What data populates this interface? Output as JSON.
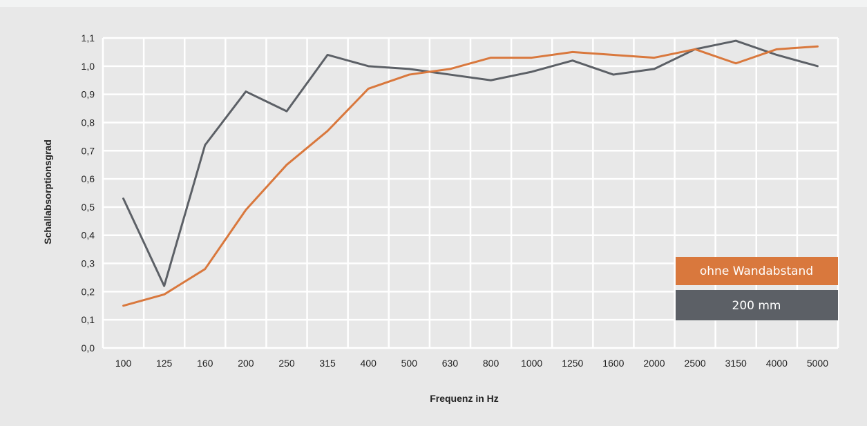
{
  "chart_data": {
    "type": "line",
    "title": "",
    "xlabel": "Frequenz in Hz",
    "ylabel": "Schallabsorptionsgrad",
    "categories": [
      "100",
      "125",
      "160",
      "200",
      "250",
      "315",
      "400",
      "500",
      "630",
      "800",
      "1000",
      "1250",
      "1600",
      "2000",
      "2500",
      "3150",
      "4000",
      "5000"
    ],
    "yticks": [
      "0,0",
      "0,1",
      "0,2",
      "0,3",
      "0,4",
      "0,5",
      "0,6",
      "0,7",
      "0,8",
      "0,9",
      "1,0",
      "1,1"
    ],
    "ylim": [
      0,
      1.1
    ],
    "grid": true,
    "legend_position": "bottom-right",
    "series": [
      {
        "name": "ohne Wandabstand",
        "color": "#d9783d",
        "values": [
          0.15,
          0.19,
          0.28,
          0.49,
          0.65,
          0.77,
          0.92,
          0.97,
          0.99,
          1.03,
          1.03,
          1.05,
          1.04,
          1.03,
          1.06,
          1.01,
          1.06,
          1.07
        ]
      },
      {
        "name": "200 mm",
        "color": "#5c6066",
        "values": [
          0.53,
          0.22,
          0.72,
          0.91,
          0.84,
          1.04,
          1.0,
          0.99,
          0.97,
          0.95,
          0.98,
          1.02,
          0.97,
          0.99,
          1.06,
          1.09,
          1.04,
          1.0
        ]
      }
    ]
  }
}
